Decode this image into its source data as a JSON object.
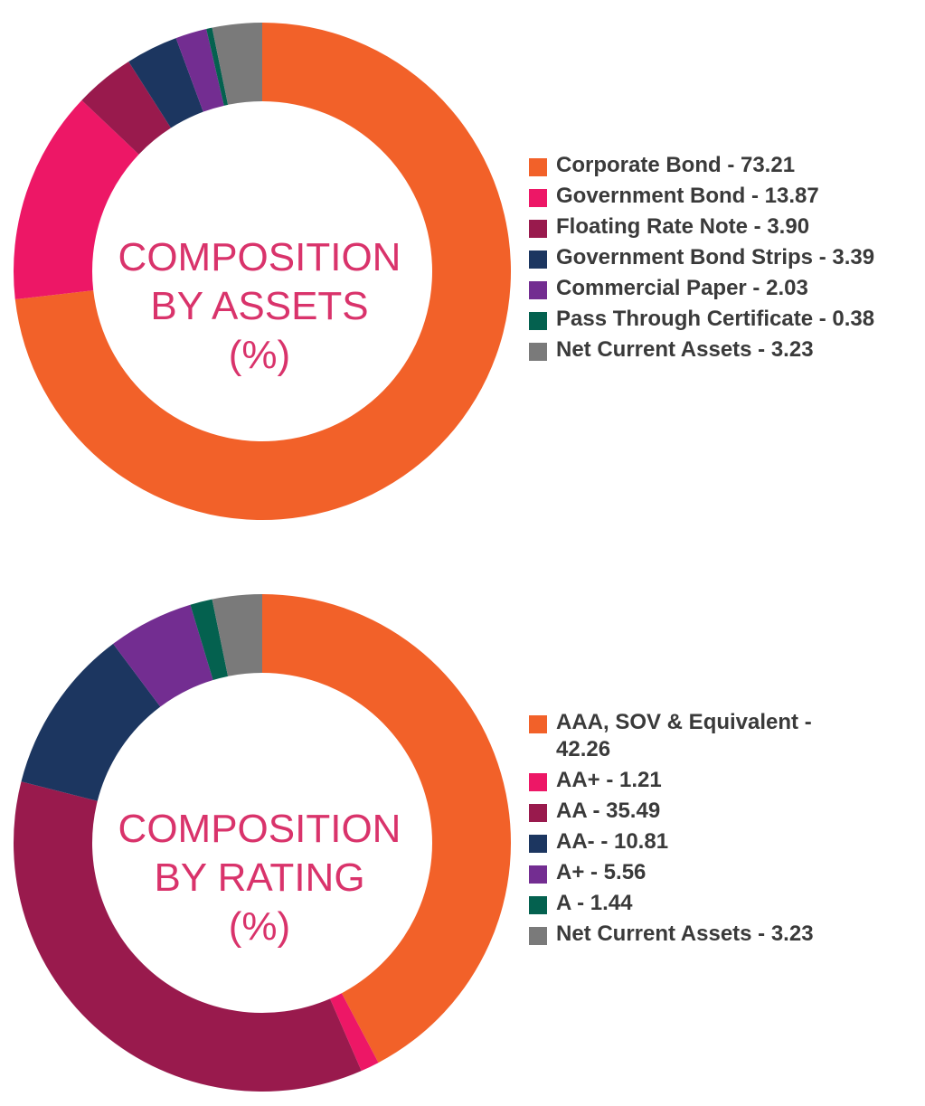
{
  "colors": {
    "title": "#d9336b",
    "text": "#3a3a3a"
  },
  "chart_data": [
    {
      "type": "pie",
      "variant": "donut",
      "title_lines": [
        "COMPOSITION",
        "BY ASSETS",
        "(%)"
      ],
      "legend_position": "right",
      "series": [
        {
          "name": "Corporate Bond",
          "value": 73.21,
          "label": "Corporate Bond - 73.21",
          "color": "#f26129"
        },
        {
          "name": "Government Bond",
          "value": 13.87,
          "label": "Government Bond - 13.87",
          "color": "#ed1766"
        },
        {
          "name": "Floating Rate Note",
          "value": 3.9,
          "label": "Floating Rate Note - 3.90",
          "color": "#991a4d"
        },
        {
          "name": "Government Bond Strips",
          "value": 3.39,
          "label": "Government Bond Strips - 3.39",
          "color": "#1c3660"
        },
        {
          "name": "Commercial Paper",
          "value": 2.03,
          "label": "Commercial Paper - 2.03",
          "color": "#732d91"
        },
        {
          "name": "Pass Through Certificate",
          "value": 0.38,
          "label": "Pass Through Certificate - 0.38",
          "color": "#04614f"
        },
        {
          "name": "Net Current Assets",
          "value": 3.23,
          "label": "Net Current Assets - 3.23",
          "color": "#7a7a7a"
        }
      ]
    },
    {
      "type": "pie",
      "variant": "donut",
      "title_lines": [
        "COMPOSITION",
        "BY RATING",
        "(%)"
      ],
      "legend_position": "right",
      "series": [
        {
          "name": "AAA, SOV & Equivalent",
          "value": 42.26,
          "label": "AAA, SOV & Equivalent - 42.26",
          "color": "#f26129"
        },
        {
          "name": "AA+",
          "value": 1.21,
          "label": "AA+ - 1.21",
          "color": "#ed1766"
        },
        {
          "name": "AA",
          "value": 35.49,
          "label": "AA - 35.49",
          "color": "#991a4d"
        },
        {
          "name": "AA-",
          "value": 10.81,
          "label": "AA- - 10.81",
          "color": "#1c3660"
        },
        {
          "name": "A+",
          "value": 5.56,
          "label": "A+ - 5.56",
          "color": "#732d91"
        },
        {
          "name": "A",
          "value": 1.44,
          "label": "A - 1.44",
          "color": "#04614f"
        },
        {
          "name": "Net Current Assets",
          "value": 3.23,
          "label": "Net Current Assets - 3.23",
          "color": "#7a7a7a"
        }
      ]
    }
  ]
}
